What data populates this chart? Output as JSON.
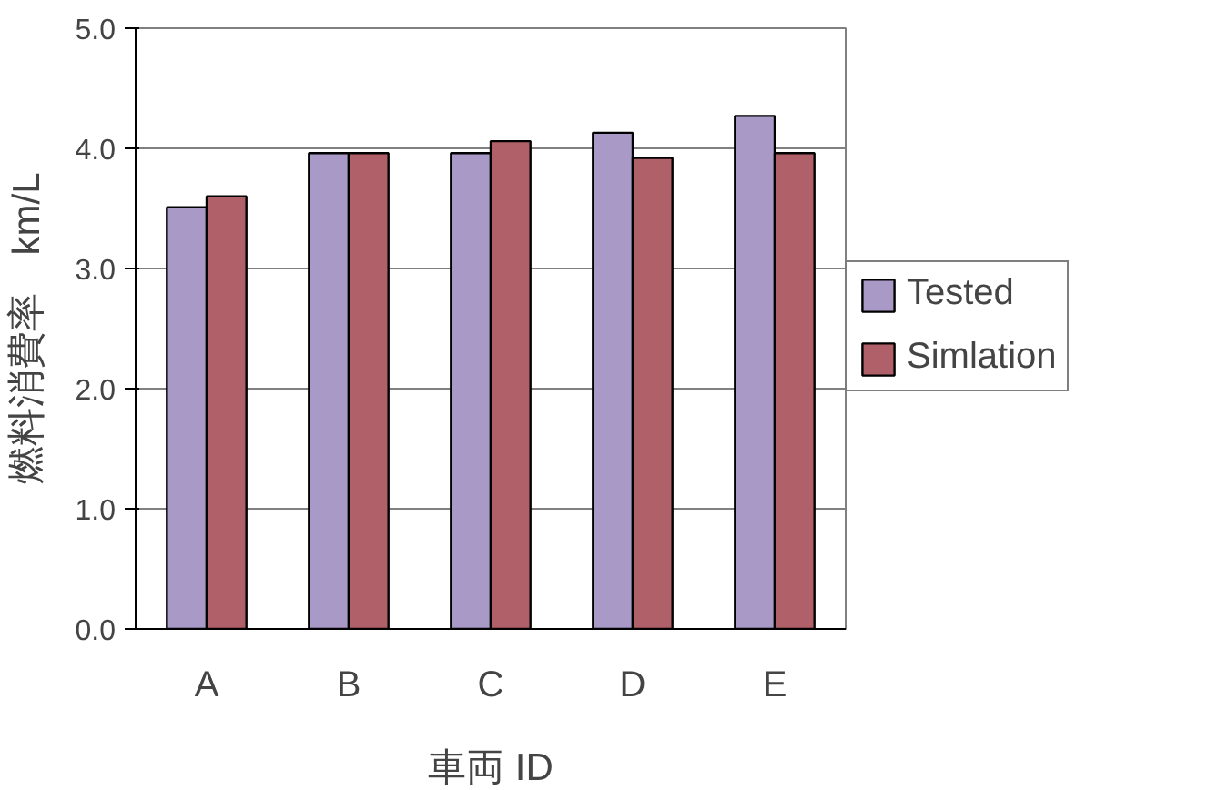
{
  "chart_data": {
    "type": "bar",
    "xlabel": "車両 ID",
    "ylabel": "燃料消費率　km/L",
    "categories": [
      "A",
      "B",
      "C",
      "D",
      "E"
    ],
    "series": [
      {
        "name": "Tested",
        "color": "#a899c6",
        "values": [
          3.51,
          3.96,
          3.96,
          4.13,
          4.27
        ]
      },
      {
        "name": "Simlation",
        "color": "#b06068",
        "values": [
          3.6,
          3.96,
          4.06,
          3.92,
          3.96
        ]
      }
    ],
    "ylim": [
      0,
      5
    ],
    "yticks": [
      {
        "value": 0,
        "label": "0.0"
      },
      {
        "value": 1,
        "label": "1.0"
      },
      {
        "value": 2,
        "label": "2.0"
      },
      {
        "value": 3,
        "label": "3.0"
      },
      {
        "value": 4,
        "label": "4.0"
      },
      {
        "value": 5,
        "label": "5.0"
      }
    ],
    "grid": "y",
    "legend": "right"
  }
}
